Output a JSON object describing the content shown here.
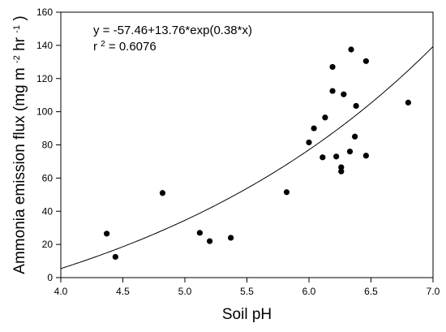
{
  "chart_data": {
    "type": "scatter",
    "x_label": "Soil pH",
    "y_label_prefix": "Ammonia emission flux (mg m",
    "y_label_sup1": "-2",
    "y_label_mid": " hr",
    "y_label_sup2": "-1",
    "y_label_suffix": ")",
    "xlim": [
      4.0,
      7.0
    ],
    "ylim": [
      0,
      160
    ],
    "x_ticks": [
      "4.0",
      "4.5",
      "5.0",
      "5.5",
      "6.0",
      "6.5",
      "7.0"
    ],
    "y_ticks": [
      "0",
      "20",
      "40",
      "60",
      "80",
      "100",
      "120",
      "140",
      "160"
    ],
    "grid": false,
    "annotation": {
      "equation": "y = -57.46+13.76*exp(0.38*x)",
      "r2_prefix": "r",
      "r2_sup": "2",
      "r2_value": " = 0.6076"
    },
    "fit_curve": {
      "a": -57.46,
      "b": 13.76,
      "c": 0.38
    },
    "points": [
      {
        "x": 4.37,
        "y": 26.5
      },
      {
        "x": 4.44,
        "y": 12.5
      },
      {
        "x": 4.82,
        "y": 51.0
      },
      {
        "x": 5.12,
        "y": 27.0
      },
      {
        "x": 5.2,
        "y": 22.0
      },
      {
        "x": 5.37,
        "y": 24.0
      },
      {
        "x": 5.82,
        "y": 51.5
      },
      {
        "x": 6.0,
        "y": 81.5
      },
      {
        "x": 6.04,
        "y": 90.0
      },
      {
        "x": 6.11,
        "y": 72.5
      },
      {
        "x": 6.13,
        "y": 96.5
      },
      {
        "x": 6.19,
        "y": 127.0
      },
      {
        "x": 6.19,
        "y": 112.5
      },
      {
        "x": 6.22,
        "y": 73.0
      },
      {
        "x": 6.26,
        "y": 64.0
      },
      {
        "x": 6.26,
        "y": 66.5
      },
      {
        "x": 6.28,
        "y": 110.5
      },
      {
        "x": 6.33,
        "y": 76.0
      },
      {
        "x": 6.34,
        "y": 137.5
      },
      {
        "x": 6.37,
        "y": 85.0
      },
      {
        "x": 6.38,
        "y": 103.5
      },
      {
        "x": 6.46,
        "y": 130.5
      },
      {
        "x": 6.46,
        "y": 73.5
      },
      {
        "x": 6.8,
        "y": 105.5
      }
    ]
  }
}
